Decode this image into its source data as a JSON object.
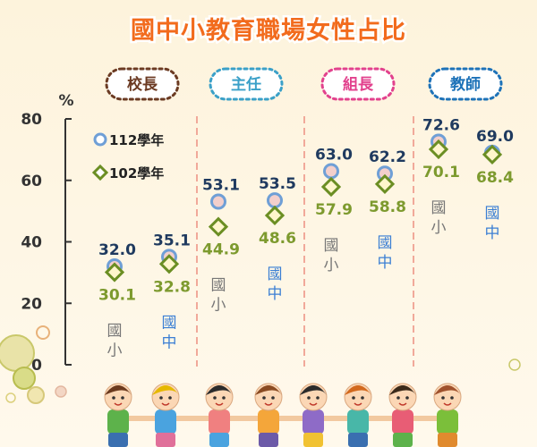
{
  "title": "國中小教育職場女性占比",
  "colors": {
    "background": "#fdf6e4",
    "title": "#f26b1d",
    "series_112": "#6f9fd6",
    "series_102": "#6b8e23",
    "value_112": "#1f3a5f",
    "value_102": "#7d9a2e",
    "elementary": "#777777",
    "junior_high": "#3b7fd4",
    "divider": "#f1a99a"
  },
  "chart_data": {
    "type": "scatter",
    "ylabel": "%",
    "ylim": [
      0,
      80
    ],
    "yticks": [
      "0",
      "20",
      "40",
      "60",
      "80"
    ],
    "groups": [
      {
        "label": "校長",
        "color": "#6b3a22"
      },
      {
        "label": "主任",
        "color": "#3aa0c8"
      },
      {
        "label": "組長",
        "color": "#e2418d"
      },
      {
        "label": "教師",
        "color": "#1d72b8"
      }
    ],
    "subcategories": [
      "國小",
      "國中"
    ],
    "series": [
      {
        "name": "112學年",
        "marker": "circle",
        "values": [
          32.0,
          35.1,
          53.1,
          53.5,
          63.0,
          62.2,
          72.6,
          69.0
        ],
        "labels": [
          "32.0",
          "35.1",
          "53.1",
          "53.5",
          "63.0",
          "62.2",
          "72.6",
          "69.0"
        ]
      },
      {
        "name": "102學年",
        "marker": "diamond",
        "values": [
          30.1,
          32.8,
          44.9,
          48.6,
          57.9,
          58.8,
          70.1,
          68.4
        ],
        "labels": [
          "30.1",
          "32.8",
          "44.9",
          "48.6",
          "57.9",
          "58.8",
          "70.1",
          "68.4"
        ]
      }
    ]
  }
}
